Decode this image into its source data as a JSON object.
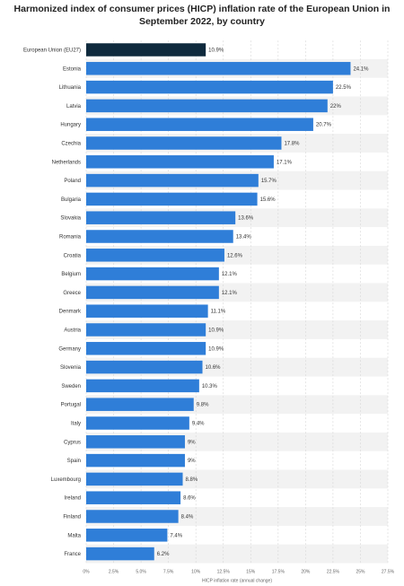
{
  "chart_data": {
    "type": "bar",
    "orientation": "horizontal",
    "title": "Harmonized index of consumer prices (HICP) inflation rate of the European Union in September 2022, by country",
    "xlabel": "HICP inflation rate (annual change)",
    "ylabel": "",
    "xlim": [
      0,
      27.5
    ],
    "ticks": [
      "0%",
      "2.5%",
      "5.0%",
      "7.5%",
      "10%",
      "12.5%",
      "15%",
      "17.5%",
      "20%",
      "22.5%",
      "25%",
      "27.5%"
    ],
    "grid": true,
    "legend": "none",
    "colors": {
      "highlight": "#0f2a3d",
      "bar": "#2f7ed8",
      "band": "#f2f2f2"
    },
    "categories": [
      "European Union (EU27)",
      "Estonia",
      "Lithuania",
      "Latvia",
      "Hungary",
      "Czechia",
      "Netherlands",
      "Poland",
      "Bulgaria",
      "Slovakia",
      "Romania",
      "Croatia",
      "Belgium",
      "Greece",
      "Denmark",
      "Austria",
      "Germany",
      "Slovenia",
      "Sweden",
      "Portugal",
      "Italy",
      "Cyprus",
      "Spain",
      "Luxembourg",
      "Ireland",
      "Finland",
      "Malta",
      "France"
    ],
    "values": [
      10.9,
      24.1,
      22.5,
      22,
      20.7,
      17.8,
      17.1,
      15.7,
      15.6,
      13.6,
      13.4,
      12.6,
      12.1,
      12.1,
      11.1,
      10.9,
      10.9,
      10.6,
      10.3,
      9.8,
      9.4,
      9,
      9,
      8.8,
      8.6,
      8.4,
      7.4,
      6.2
    ],
    "value_labels": [
      "10.9%",
      "24.1%",
      "22.5%",
      "22%",
      "20.7%",
      "17.8%",
      "17.1%",
      "15.7%",
      "15.6%",
      "13.6%",
      "13.4%",
      "12.6%",
      "12.1%",
      "12.1%",
      "11.1%",
      "10.9%",
      "10.9%",
      "10.6%",
      "10.3%",
      "9.8%",
      "9.4%",
      "9%",
      "9%",
      "8.8%",
      "8.6%",
      "8.4%",
      "7.4%",
      "6.2%"
    ]
  }
}
